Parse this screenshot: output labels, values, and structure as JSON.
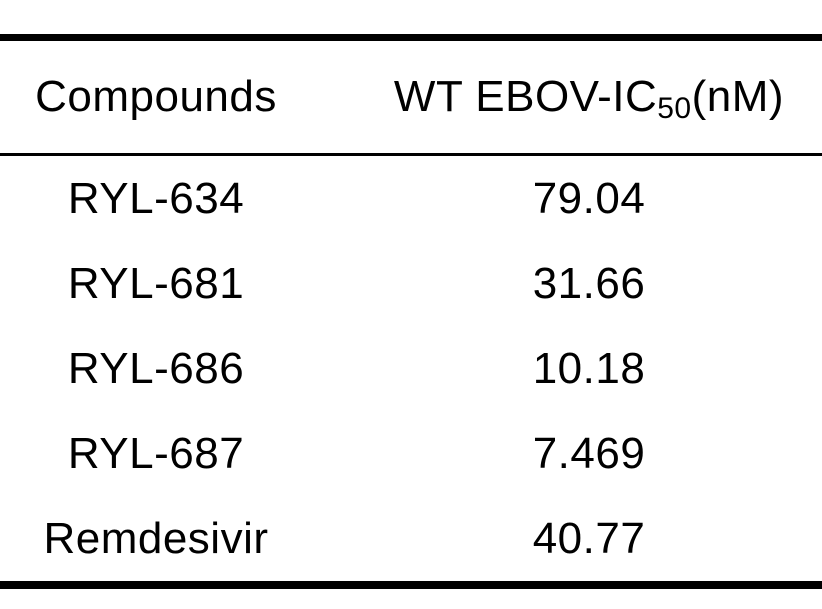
{
  "colors": {
    "background": "#ffffff",
    "text": "#000000",
    "rule": "#000000"
  },
  "header": {
    "compounds_label": "Compounds",
    "ic50_label": {
      "prefix": "WT EBOV-IC",
      "subscript": "50",
      "suffix": "(nM)"
    }
  },
  "rows": [
    {
      "compound": "RYL-634",
      "value": "79.04"
    },
    {
      "compound": "RYL-681",
      "value": "31.66"
    },
    {
      "compound": "RYL-686",
      "value": "10.18"
    },
    {
      "compound": "RYL-687",
      "value": "7.469"
    },
    {
      "compound": "Remdesivir",
      "value": "40.77"
    }
  ],
  "chart_data": {
    "type": "table",
    "title": "",
    "columns": [
      "Compounds",
      "WT EBOV-IC50(nM)"
    ],
    "rows": [
      [
        "RYL-634",
        79.04
      ],
      [
        "RYL-681",
        31.66
      ],
      [
        "RYL-686",
        10.18
      ],
      [
        "RYL-687",
        7.469
      ],
      [
        "Remdesivir",
        40.77
      ]
    ],
    "notes": "Two-column results table with thick top/bottom rules and a thin rule under the header; IC50 rendered with subscript 50."
  }
}
